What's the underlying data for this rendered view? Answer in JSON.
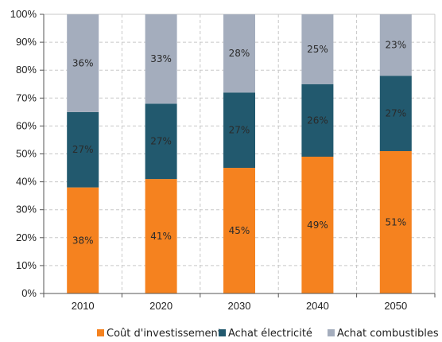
{
  "chart_data": {
    "type": "bar",
    "stacked": true,
    "categories": [
      "2010",
      "2020",
      "2030",
      "2040",
      "2050"
    ],
    "series": [
      {
        "name": "Coût d'investissement",
        "color": "#f5821f",
        "values": [
          38,
          41,
          45,
          49,
          51
        ],
        "labels": [
          "38%",
          "41%",
          "45%",
          "49%",
          "51%"
        ]
      },
      {
        "name": "Achat électricité",
        "color": "#22596e",
        "values": [
          27,
          27,
          27,
          26,
          27
        ],
        "labels": [
          "27%",
          "27%",
          "27%",
          "26%",
          "27%"
        ]
      },
      {
        "name": "Achat combustibles",
        "color": "#a4adbd",
        "values": [
          36,
          33,
          28,
          25,
          23
        ],
        "labels": [
          "36%",
          "33%",
          "28%",
          "25%",
          "23%"
        ]
      }
    ],
    "ylim": [
      0,
      100
    ],
    "yticks": [
      "0%",
      "10%",
      "20%",
      "30%",
      "40%",
      "50%",
      "60%",
      "70%",
      "80%",
      "90%",
      "100%"
    ],
    "grid": true,
    "legend_position": "bottom",
    "title": "",
    "xlabel": "",
    "ylabel": ""
  }
}
